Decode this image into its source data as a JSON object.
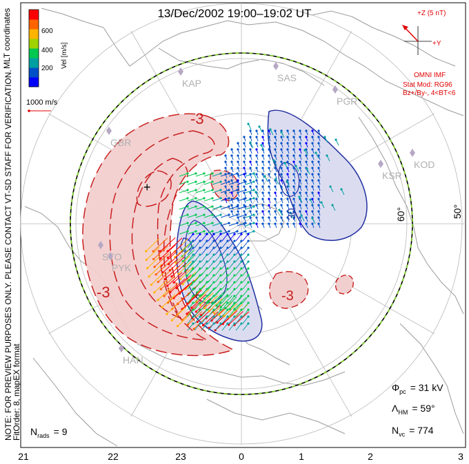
{
  "header": {
    "title": "13/Dec/2002 19:00–19:02 UT"
  },
  "side_note": {
    "line1": "NOTE: FOR PREVIEW PURPOSES ONLY. PLEASE CONTACT VT-SD STAFF FOR VERIFICATION.",
    "line2": "FitOrder: 8, mapEX format",
    "coords": "MLT coordinates"
  },
  "colorbar": {
    "label": "Vel [m/s]",
    "ticks": [
      "600",
      "400",
      "200"
    ],
    "colors": [
      "#0000ff",
      "#0050c8",
      "#00a0a0",
      "#00c850",
      "#a0d200",
      "#ffb400",
      "#ff6400",
      "#ff0000"
    ]
  },
  "scale_vector": {
    "label": "1000 m/s"
  },
  "imf": {
    "z_label": "+Z (5 nT)",
    "y_label": "+Y",
    "source": "OMNI IMF",
    "model": "Stat Mod: RG96",
    "condition": "Bz+/By-, 4<BT<6"
  },
  "stations": [
    "KAP",
    "SAS",
    "PGR",
    "GBR",
    "KSR",
    "KOD",
    "STO",
    "PYK",
    "HAN"
  ],
  "lat_labels": [
    "60°",
    "50°"
  ],
  "mlt_labels": [
    "21",
    "22",
    "23",
    "0",
    "1",
    "2",
    "3"
  ],
  "contour_labels": {
    "neg1": "-3",
    "neg2": "-3",
    "neg3": "-3",
    "pos1": "30"
  },
  "stats": {
    "phi_sym": "Φ",
    "phi_sub": "pc",
    "phi_val": "= 31 kV",
    "lam_sym": "Λ",
    "lam_sub": "HM",
    "lam_val": "= 59°",
    "nvc_sym": "N",
    "nvc_sub": "vc",
    "nvc_val": "= 774",
    "nrads_sym": "N",
    "nrads_sub": "rads",
    "nrads_val": "= 9"
  },
  "colors": {
    "neg_cell": "#c81e1e",
    "pos_cell": "#1e2ea0",
    "hm_boundary": "#7ed321"
  }
}
